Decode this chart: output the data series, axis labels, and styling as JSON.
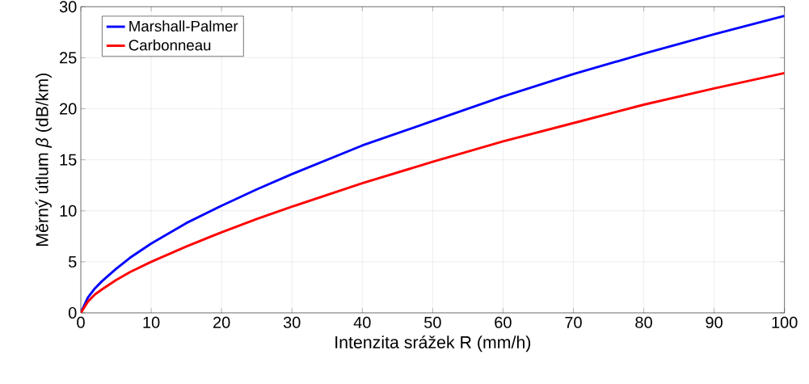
{
  "chart_data": {
    "type": "line",
    "xlabel": "Intenzita srážek R (mm/h)",
    "ylabel": "Měrný útlum *β* (dB/km)",
    "x": [
      0,
      1,
      2,
      3,
      5,
      7,
      10,
      15,
      20,
      25,
      30,
      40,
      50,
      60,
      70,
      80,
      90,
      100
    ],
    "series": [
      {
        "name": "Marshall-Palmer",
        "color": "#0000ff",
        "values": [
          0,
          1.5,
          2.4,
          3.1,
          4.3,
          5.4,
          6.8,
          8.8,
          10.5,
          12.1,
          13.6,
          16.4,
          18.8,
          21.2,
          23.4,
          25.4,
          27.3,
          29.1
        ]
      },
      {
        "name": "Carbonneau",
        "color": "#ff0000",
        "values": [
          0,
          1.1,
          1.8,
          2.3,
          3.2,
          4.0,
          5.0,
          6.5,
          7.9,
          9.2,
          10.4,
          12.7,
          14.8,
          16.8,
          18.6,
          20.4,
          22.0,
          23.5
        ]
      }
    ],
    "xlim": [
      0,
      100
    ],
    "ylim": [
      0,
      30
    ],
    "xticks": [
      0,
      10,
      20,
      30,
      40,
      50,
      60,
      70,
      80,
      90,
      100
    ],
    "yticks": [
      0,
      5,
      10,
      15,
      20,
      25,
      30
    ],
    "grid": true,
    "legend": "top left",
    "line_style": "solid",
    "marker": "none"
  }
}
